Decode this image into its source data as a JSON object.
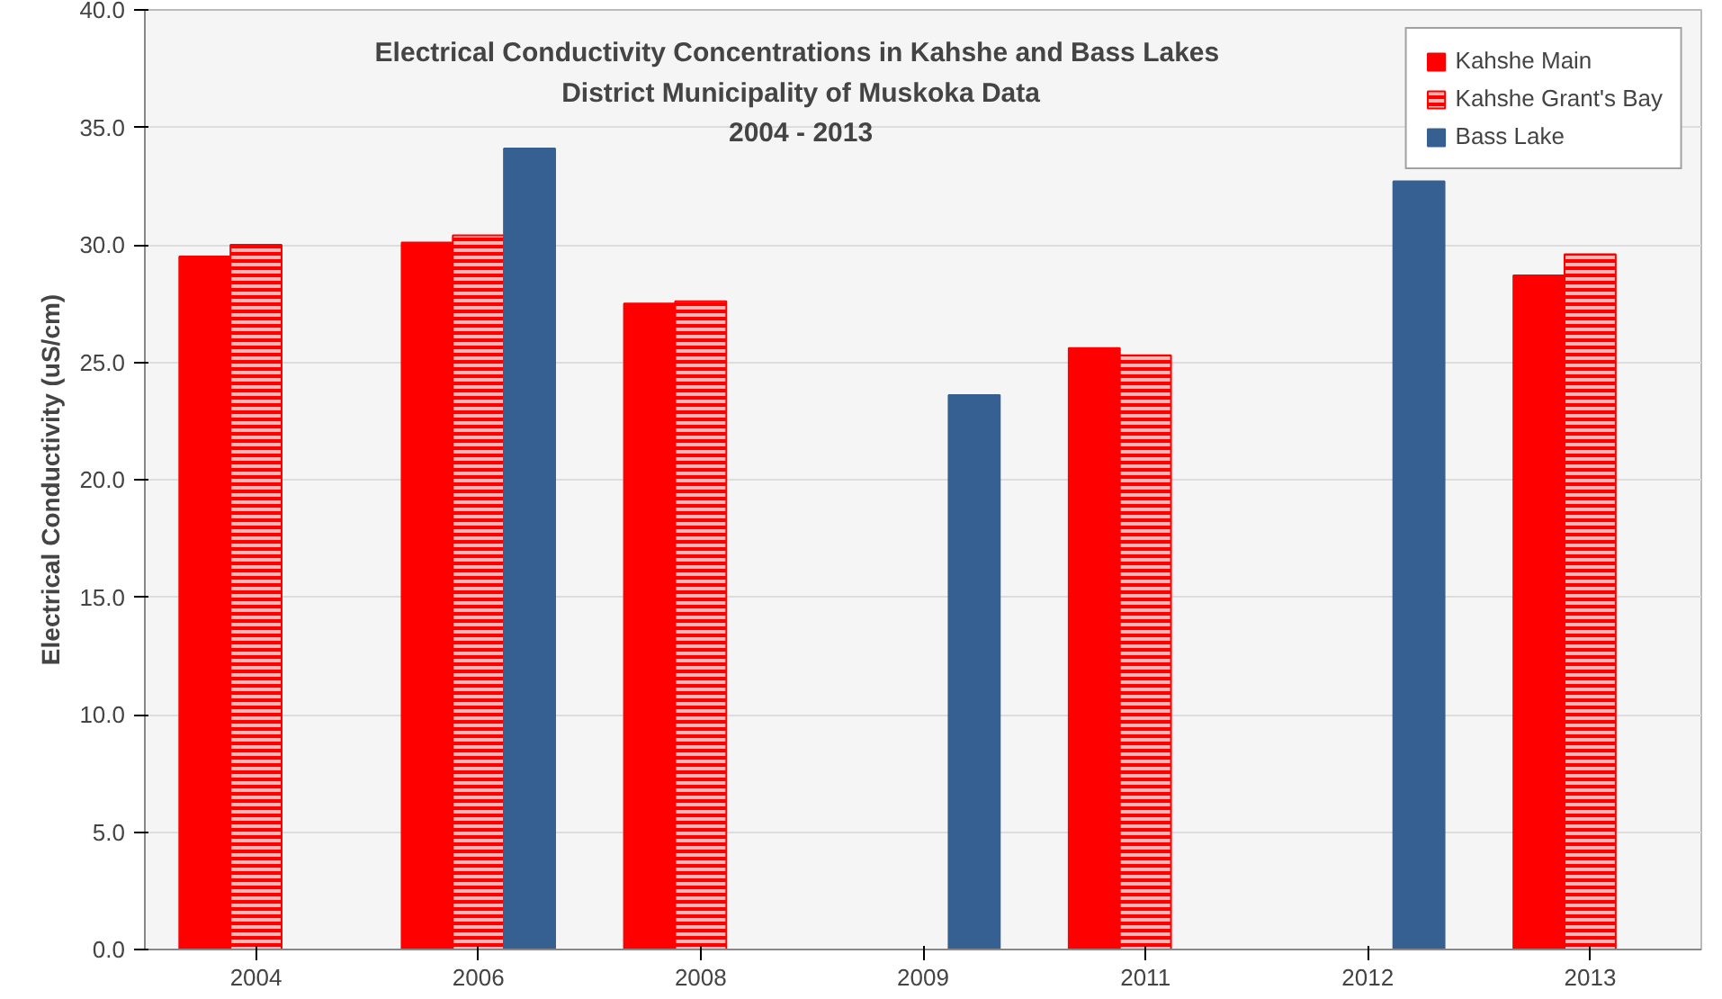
{
  "chart_data": {
    "type": "bar",
    "title": "Electrical Conductivity  Concentrations in Kahshe and Bass Lakes\nDistrict Municipality of Muskoka Data\n2004 - 2013",
    "ylabel": "Electrical Conductivity (uS/cm)",
    "categories": [
      "2004",
      "2006",
      "2008",
      "2009",
      "2011",
      "2012",
      "2013"
    ],
    "series": [
      {
        "name": "Kahshe Main",
        "color": "#ff0000",
        "values": [
          29.5,
          30.1,
          27.5,
          null,
          25.6,
          null,
          28.7
        ]
      },
      {
        "name": "Kahshe Grant's Bay",
        "color": "#ff0000",
        "values": [
          30.0,
          30.4,
          27.6,
          null,
          25.3,
          null,
          29.6
        ]
      },
      {
        "name": "Bass Lake",
        "color": "#366092",
        "values": [
          null,
          34.1,
          null,
          23.6,
          null,
          32.7,
          null
        ]
      }
    ],
    "ylim": [
      0,
      40
    ],
    "yticks": [
      {
        "value": 0,
        "label": "0.0"
      },
      {
        "value": 5,
        "label": "5.0"
      },
      {
        "value": 10,
        "label": "10.0"
      },
      {
        "value": 15,
        "label": "15.0"
      },
      {
        "value": 20,
        "label": "20.0"
      },
      {
        "value": 25,
        "label": "25.0"
      },
      {
        "value": 30,
        "label": "30.0"
      },
      {
        "value": 35,
        "label": "35.0"
      },
      {
        "value": 40,
        "label": "40.0"
      }
    ],
    "grid": "y",
    "legend": "top right"
  }
}
